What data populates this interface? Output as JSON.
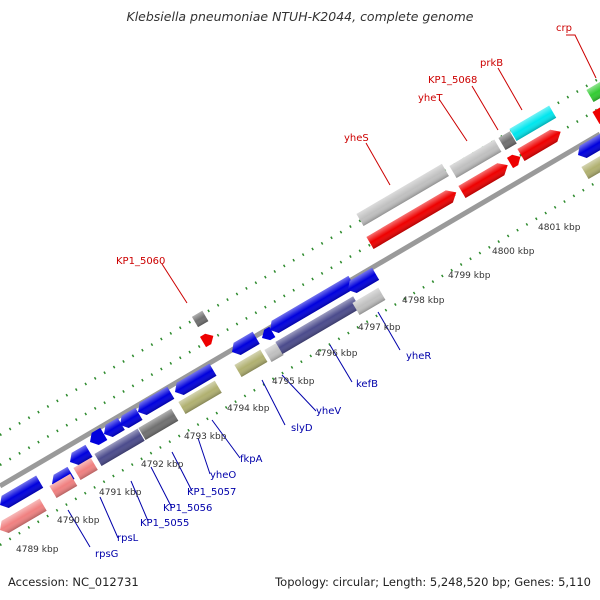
{
  "header": {
    "title": "Klebsiella pneumoniae NTUH-K2044, complete genome"
  },
  "footer": {
    "accession": "Accession: NC_012731",
    "topology": "Topology: circular; Length: 5,248,520 bp; Genes: 5,110"
  },
  "colors": {
    "background": "#ffffff",
    "backbone": "#9a9a9a",
    "tick": "#2e8b2e",
    "cds_fwd": "#ee0000",
    "cds_rev": "#0000dd",
    "rrna": "#f08080",
    "trna_dark": "#4b4b8c",
    "light_gray": "#c0c0c0",
    "dark_gray": "#707070",
    "olive": "#b0b070",
    "cyan": "#00e6ee",
    "green": "#33cc33",
    "label_fwd": "#cc0000",
    "label_rev": "#0000aa"
  },
  "kbp_labels": [
    "4789 kbp",
    "4790 kbp",
    "4791 kbp",
    "4792 kbp",
    "4793 kbp",
    "4794 kbp",
    "4795 kbp",
    "4796 kbp",
    "4797 kbp",
    "4798 kbp",
    "4799 kbp",
    "4800 kbp",
    "4801 kbp"
  ],
  "gene_labels_forward": [
    "crp",
    "prkB",
    "KP1_5068",
    "yheT",
    "yheS",
    "KP1_5060"
  ],
  "gene_labels_reverse": [
    "rpsG",
    "rpsL",
    "KP1_5055",
    "KP1_5056",
    "KP1_5057",
    "yheO",
    "fkpA",
    "slyD",
    "yheV",
    "kefB",
    "yheR"
  ]
}
